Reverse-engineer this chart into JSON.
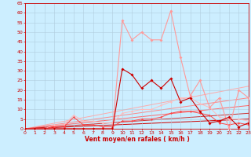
{
  "xlabel": "Vent moyen/en rafales ( km/h )",
  "xlim": [
    0,
    23
  ],
  "ylim": [
    0,
    65
  ],
  "yticks": [
    0,
    5,
    10,
    15,
    20,
    25,
    30,
    35,
    40,
    45,
    50,
    55,
    60,
    65
  ],
  "xticks": [
    0,
    1,
    2,
    3,
    4,
    5,
    6,
    7,
    8,
    9,
    10,
    11,
    12,
    13,
    14,
    15,
    16,
    17,
    18,
    19,
    20,
    21,
    22,
    23
  ],
  "bg_color": "#cceeff",
  "grid_color": "#b0ccdd",
  "line_dark_red": {
    "x": [
      0,
      1,
      2,
      3,
      4,
      5,
      6,
      7,
      8,
      9,
      10,
      11,
      12,
      13,
      14,
      15,
      16,
      17,
      18,
      19,
      20,
      21,
      22,
      23
    ],
    "y": [
      0,
      0,
      0,
      0,
      0,
      0,
      0,
      0,
      0,
      0,
      31,
      28,
      21,
      25,
      21,
      26,
      14,
      16,
      9,
      3,
      4,
      6,
      1,
      3
    ],
    "color": "#cc0000",
    "marker": "D",
    "lw": 0.8,
    "ms": 2
  },
  "line_light_red": {
    "x": [
      0,
      1,
      2,
      3,
      4,
      5,
      6,
      7,
      8,
      9,
      10,
      11,
      12,
      13,
      14,
      15,
      16,
      17,
      18,
      19,
      20,
      21,
      22,
      23
    ],
    "y": [
      0,
      0,
      0,
      0,
      0,
      0,
      0,
      0,
      0,
      0,
      56,
      46,
      50,
      46,
      46,
      61,
      37,
      17,
      25,
      11,
      16,
      0,
      20,
      16
    ],
    "color": "#ff9999",
    "marker": "D",
    "lw": 0.8,
    "ms": 2
  },
  "line_med1": {
    "x": [
      0,
      1,
      2,
      3,
      4,
      5,
      6,
      7,
      8,
      9,
      10,
      11,
      12,
      13,
      14,
      15,
      16,
      17,
      18,
      19,
      20,
      21,
      22,
      23
    ],
    "y": [
      0,
      0,
      0,
      1,
      1,
      6,
      2,
      2,
      1,
      1,
      4,
      4,
      5,
      5,
      6,
      8,
      9,
      9,
      8,
      7,
      3,
      2,
      3,
      2
    ],
    "color": "#ff4444",
    "marker": "D",
    "lw": 0.7,
    "ms": 1.5
  },
  "line_med2": {
    "x": [
      0,
      1,
      2,
      3,
      4,
      5,
      6,
      7,
      8,
      9,
      10,
      11,
      12,
      13,
      14,
      15,
      16,
      17,
      18,
      19,
      20,
      21,
      22,
      23
    ],
    "y": [
      0,
      0,
      0,
      2,
      2,
      7,
      4,
      4,
      3,
      3,
      8,
      9,
      10,
      10,
      12,
      14,
      16,
      16,
      13,
      11,
      6,
      5,
      5,
      4
    ],
    "color": "#ffbbbb",
    "marker": "D",
    "lw": 0.7,
    "ms": 1.5
  },
  "slope_lines": [
    {
      "x": [
        0,
        23
      ],
      "y": [
        0,
        22
      ],
      "color": "#ffaaaa",
      "lw": 0.7
    },
    {
      "x": [
        0,
        23
      ],
      "y": [
        0,
        16
      ],
      "color": "#ff8888",
      "lw": 0.7
    },
    {
      "x": [
        0,
        23
      ],
      "y": [
        0,
        12
      ],
      "color": "#ff6666",
      "lw": 0.7
    },
    {
      "x": [
        0,
        23
      ],
      "y": [
        0,
        8
      ],
      "color": "#cc3333",
      "lw": 0.7
    },
    {
      "x": [
        0,
        23
      ],
      "y": [
        0,
        5
      ],
      "color": "#cc0000",
      "lw": 0.7
    }
  ]
}
